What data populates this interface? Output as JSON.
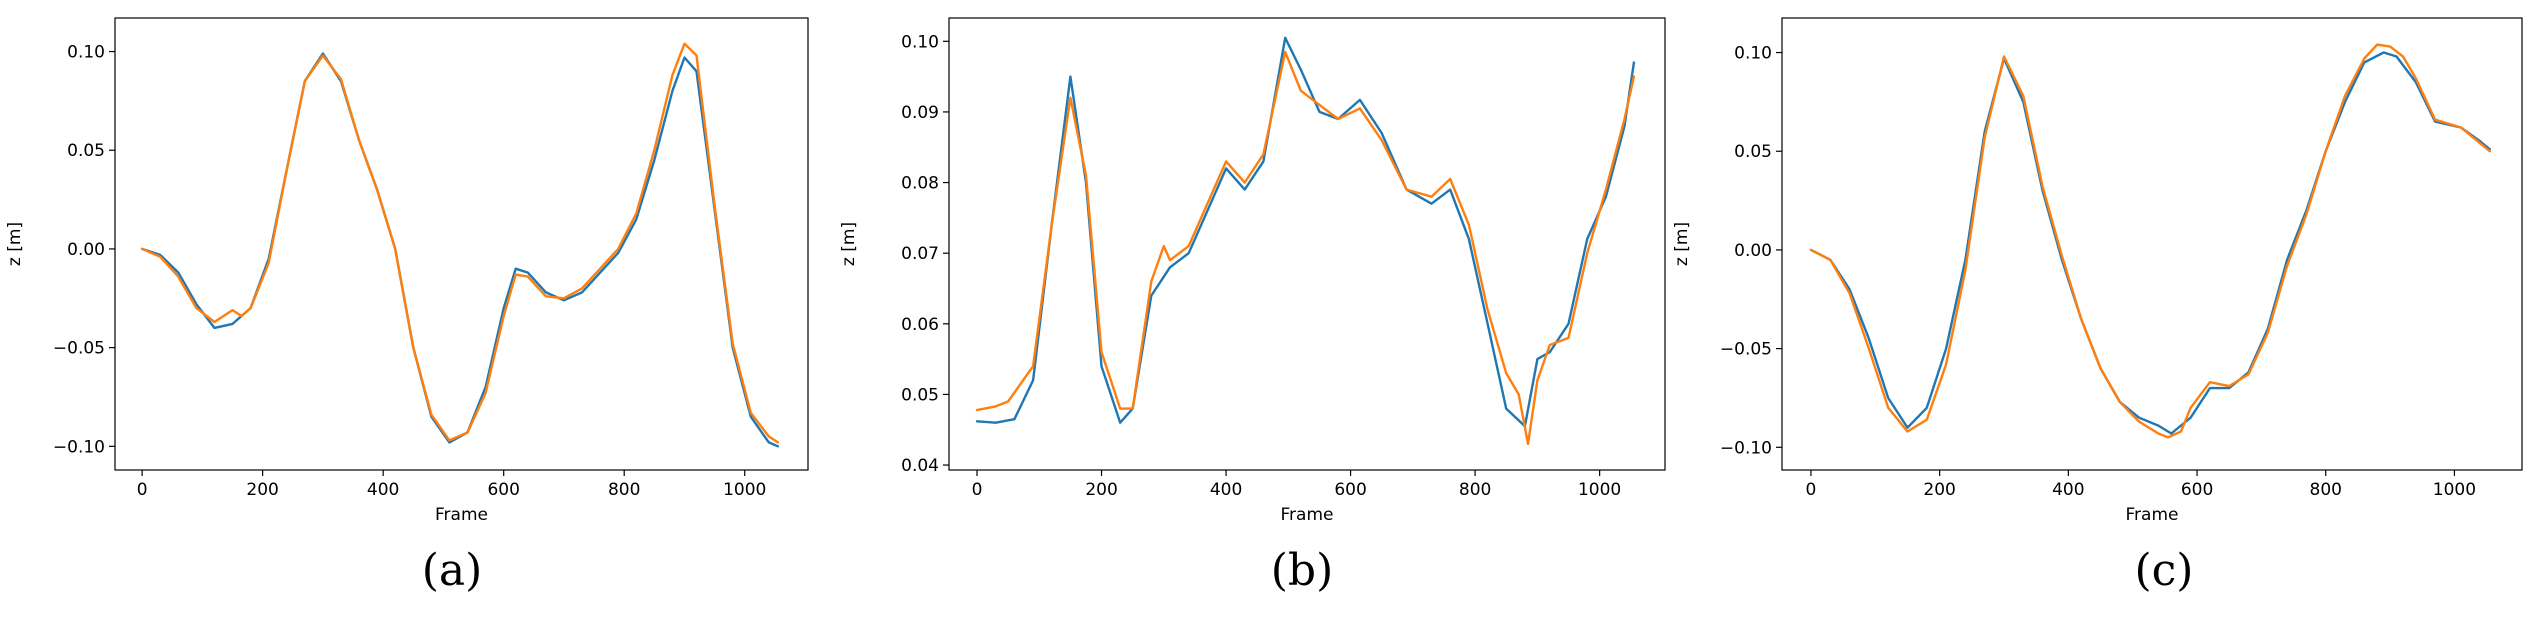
{
  "figure": {
    "captions": [
      "(a)",
      "(b)",
      "(c)"
    ]
  },
  "colors": {
    "series1": "#1f77b4",
    "series2": "#ff7f0e"
  },
  "chart_data": [
    {
      "type": "line",
      "caption": "(a)",
      "xlabel": "Frame",
      "ylabel": "z [m]",
      "xlim": [
        -45,
        1105
      ],
      "ylim": [
        -0.112,
        0.117
      ],
      "xticks": [
        0,
        200,
        400,
        600,
        800,
        1000
      ],
      "yticks": [
        -0.1,
        -0.05,
        0.0,
        0.05,
        0.1
      ],
      "ytick_labels": [
        "−0.10",
        "−0.05",
        "0.00",
        "0.05",
        "0.10"
      ],
      "grid": false,
      "series": [
        {
          "color": "#1f77b4",
          "x": [
            0,
            30,
            60,
            90,
            120,
            150,
            180,
            210,
            240,
            270,
            300,
            330,
            360,
            390,
            420,
            450,
            480,
            510,
            540,
            570,
            600,
            620,
            640,
            670,
            700,
            730,
            760,
            790,
            820,
            850,
            880,
            900,
            920,
            950,
            980,
            1010,
            1040,
            1055
          ],
          "y": [
            0.0,
            -0.003,
            -0.012,
            -0.028,
            -0.04,
            -0.038,
            -0.03,
            -0.005,
            0.04,
            0.085,
            0.099,
            0.085,
            0.055,
            0.03,
            0.0,
            -0.05,
            -0.085,
            -0.098,
            -0.093,
            -0.07,
            -0.03,
            -0.01,
            -0.012,
            -0.022,
            -0.026,
            -0.022,
            -0.012,
            -0.002,
            0.015,
            0.045,
            0.08,
            0.097,
            0.09,
            0.02,
            -0.05,
            -0.085,
            -0.098,
            -0.1
          ]
        },
        {
          "color": "#ff7f0e",
          "x": [
            0,
            30,
            60,
            90,
            120,
            150,
            165,
            180,
            210,
            240,
            270,
            300,
            330,
            360,
            390,
            420,
            450,
            480,
            510,
            540,
            570,
            600,
            620,
            640,
            670,
            700,
            730,
            760,
            790,
            820,
            850,
            880,
            900,
            920,
            950,
            980,
            1010,
            1040,
            1055
          ],
          "y": [
            0.0,
            -0.004,
            -0.014,
            -0.03,
            -0.037,
            -0.031,
            -0.034,
            -0.03,
            -0.007,
            0.04,
            0.085,
            0.098,
            0.086,
            0.055,
            0.03,
            0.0,
            -0.05,
            -0.084,
            -0.097,
            -0.093,
            -0.073,
            -0.034,
            -0.013,
            -0.014,
            -0.024,
            -0.025,
            -0.02,
            -0.01,
            0.0,
            0.018,
            0.05,
            0.088,
            0.104,
            0.098,
            0.022,
            -0.048,
            -0.083,
            -0.095,
            -0.098
          ]
        }
      ]
    },
    {
      "type": "line",
      "caption": "(b)",
      "xlabel": "Frame",
      "ylabel": "z [m]",
      "xlim": [
        -45,
        1105
      ],
      "ylim": [
        0.0393,
        0.1033
      ],
      "xticks": [
        0,
        200,
        400,
        600,
        800,
        1000
      ],
      "yticks": [
        0.04,
        0.05,
        0.06,
        0.07,
        0.08,
        0.09,
        0.1
      ],
      "ytick_labels": [
        "0.04",
        "0.05",
        "0.06",
        "0.07",
        "0.08",
        "0.09",
        "0.10"
      ],
      "grid": false,
      "series": [
        {
          "color": "#1f77b4",
          "x": [
            0,
            30,
            60,
            90,
            120,
            150,
            175,
            200,
            230,
            250,
            280,
            310,
            340,
            370,
            400,
            430,
            460,
            495,
            520,
            550,
            580,
            615,
            650,
            690,
            730,
            760,
            790,
            820,
            850,
            880,
            900,
            920,
            950,
            980,
            1010,
            1040,
            1055
          ],
          "y": [
            0.0462,
            0.046,
            0.0465,
            0.052,
            0.074,
            0.095,
            0.08,
            0.054,
            0.046,
            0.048,
            0.064,
            0.068,
            0.07,
            0.076,
            0.082,
            0.079,
            0.083,
            0.1005,
            0.096,
            0.09,
            0.089,
            0.0917,
            0.087,
            0.079,
            0.077,
            0.079,
            0.072,
            0.06,
            0.048,
            0.0455,
            0.055,
            0.056,
            0.06,
            0.072,
            0.078,
            0.088,
            0.097
          ]
        },
        {
          "color": "#ff7f0e",
          "x": [
            0,
            30,
            50,
            90,
            120,
            150,
            175,
            200,
            230,
            250,
            280,
            300,
            310,
            340,
            370,
            400,
            430,
            460,
            495,
            520,
            550,
            580,
            615,
            650,
            690,
            730,
            760,
            790,
            820,
            850,
            870,
            885,
            900,
            920,
            950,
            980,
            1010,
            1040,
            1055
          ],
          "y": [
            0.0478,
            0.0483,
            0.049,
            0.054,
            0.074,
            0.092,
            0.081,
            0.056,
            0.048,
            0.048,
            0.066,
            0.071,
            0.069,
            0.071,
            0.077,
            0.083,
            0.08,
            0.084,
            0.0985,
            0.093,
            0.091,
            0.089,
            0.0905,
            0.086,
            0.079,
            0.078,
            0.0805,
            0.074,
            0.062,
            0.053,
            0.05,
            0.043,
            0.052,
            0.057,
            0.058,
            0.07,
            0.079,
            0.089,
            0.095
          ]
        }
      ]
    },
    {
      "type": "line",
      "caption": "(c)",
      "xlabel": "Frame",
      "ylabel": "z [m]",
      "xlim": [
        -45,
        1105
      ],
      "ylim": [
        -0.1115,
        0.1175
      ],
      "xticks": [
        0,
        200,
        400,
        600,
        800,
        1000
      ],
      "yticks": [
        -0.1,
        -0.05,
        0.0,
        0.05,
        0.1
      ],
      "ytick_labels": [
        "−0.10",
        "−0.05",
        "0.00",
        "0.05",
        "0.10"
      ],
      "grid": false,
      "series": [
        {
          "color": "#1f77b4",
          "x": [
            0,
            30,
            60,
            90,
            120,
            150,
            180,
            210,
            240,
            270,
            300,
            330,
            360,
            390,
            420,
            450,
            480,
            510,
            540,
            560,
            590,
            620,
            650,
            680,
            710,
            740,
            770,
            800,
            830,
            860,
            890,
            910,
            940,
            970,
            1010,
            1040,
            1055
          ],
          "y": [
            0.0,
            -0.005,
            -0.02,
            -0.045,
            -0.075,
            -0.09,
            -0.08,
            -0.05,
            -0.005,
            0.06,
            0.097,
            0.075,
            0.03,
            -0.005,
            -0.035,
            -0.06,
            -0.077,
            -0.085,
            -0.089,
            -0.093,
            -0.085,
            -0.07,
            -0.07,
            -0.062,
            -0.04,
            -0.005,
            0.02,
            0.05,
            0.075,
            0.095,
            0.1,
            0.098,
            0.085,
            0.065,
            0.062,
            0.055,
            0.051
          ]
        },
        {
          "color": "#ff7f0e",
          "x": [
            0,
            30,
            60,
            90,
            120,
            150,
            180,
            210,
            240,
            270,
            300,
            330,
            360,
            390,
            420,
            450,
            480,
            510,
            540,
            555,
            575,
            590,
            620,
            650,
            680,
            710,
            740,
            770,
            800,
            830,
            860,
            880,
            900,
            920,
            940,
            970,
            1010,
            1040,
            1055
          ],
          "y": [
            0.0,
            -0.005,
            -0.022,
            -0.05,
            -0.08,
            -0.092,
            -0.086,
            -0.058,
            -0.01,
            0.057,
            0.098,
            0.078,
            0.032,
            -0.003,
            -0.035,
            -0.06,
            -0.077,
            -0.087,
            -0.093,
            -0.095,
            -0.092,
            -0.08,
            -0.067,
            -0.069,
            -0.063,
            -0.042,
            -0.008,
            0.018,
            0.05,
            0.078,
            0.097,
            0.104,
            0.103,
            0.098,
            0.087,
            0.066,
            0.062,
            0.054,
            0.05
          ]
        }
      ]
    }
  ]
}
